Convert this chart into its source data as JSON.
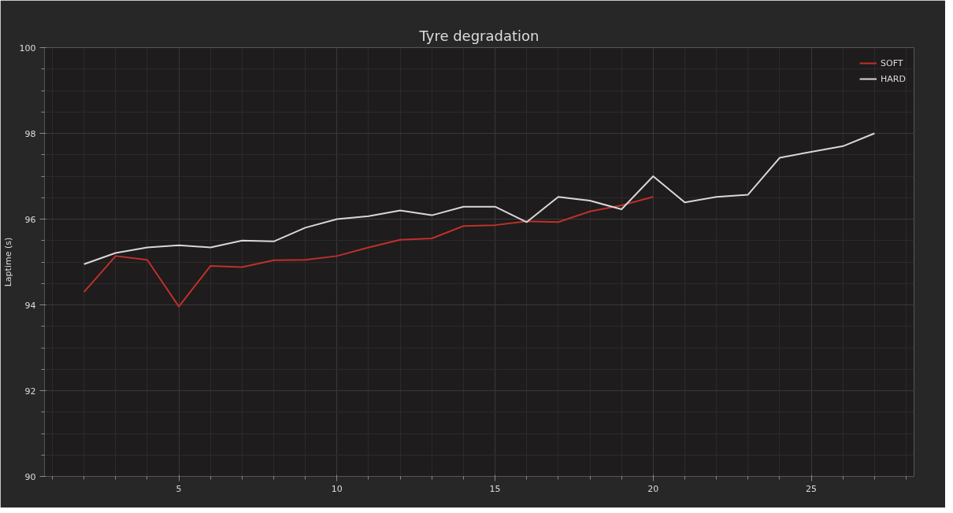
{
  "chart_data": {
    "type": "line",
    "title": "Tyre degradation",
    "ylabel": "Laptime (s)",
    "xlim": [
      0.75,
      28.25
    ],
    "xticks": [
      5,
      10,
      15,
      20,
      25
    ],
    "ylim": [
      90,
      100
    ],
    "yticks": [
      90,
      92,
      94,
      96,
      98,
      100
    ],
    "grid": true,
    "legend": "top right",
    "marker": "none",
    "line_style": "solid",
    "series": [
      {
        "name": "SOFT",
        "color": "#c0302a",
        "x": [
          2,
          3,
          4,
          5,
          6,
          7,
          8,
          9,
          10,
          11,
          12,
          13,
          14,
          15,
          16,
          17,
          18,
          19,
          20
        ],
        "values": [
          94.3,
          95.14,
          95.05,
          93.96,
          94.91,
          94.88,
          95.04,
          95.05,
          95.14,
          95.34,
          95.52,
          95.55,
          95.84,
          95.86,
          95.95,
          95.93,
          96.18,
          96.32,
          96.52
        ]
      },
      {
        "name": "HARD",
        "color": "#d8d8d8",
        "x": [
          2,
          3,
          4,
          5,
          6,
          7,
          8,
          9,
          10,
          11,
          12,
          13,
          14,
          15,
          16,
          17,
          18,
          19,
          20,
          21,
          22,
          23,
          24,
          25,
          26,
          27
        ],
        "values": [
          94.95,
          95.21,
          95.34,
          95.39,
          95.34,
          95.5,
          95.48,
          95.8,
          96.0,
          96.07,
          96.2,
          96.09,
          96.29,
          96.29,
          95.93,
          96.52,
          96.43,
          96.23,
          97.0,
          96.39,
          96.52,
          96.57,
          97.43,
          97.57,
          97.7,
          98.0
        ]
      }
    ]
  }
}
